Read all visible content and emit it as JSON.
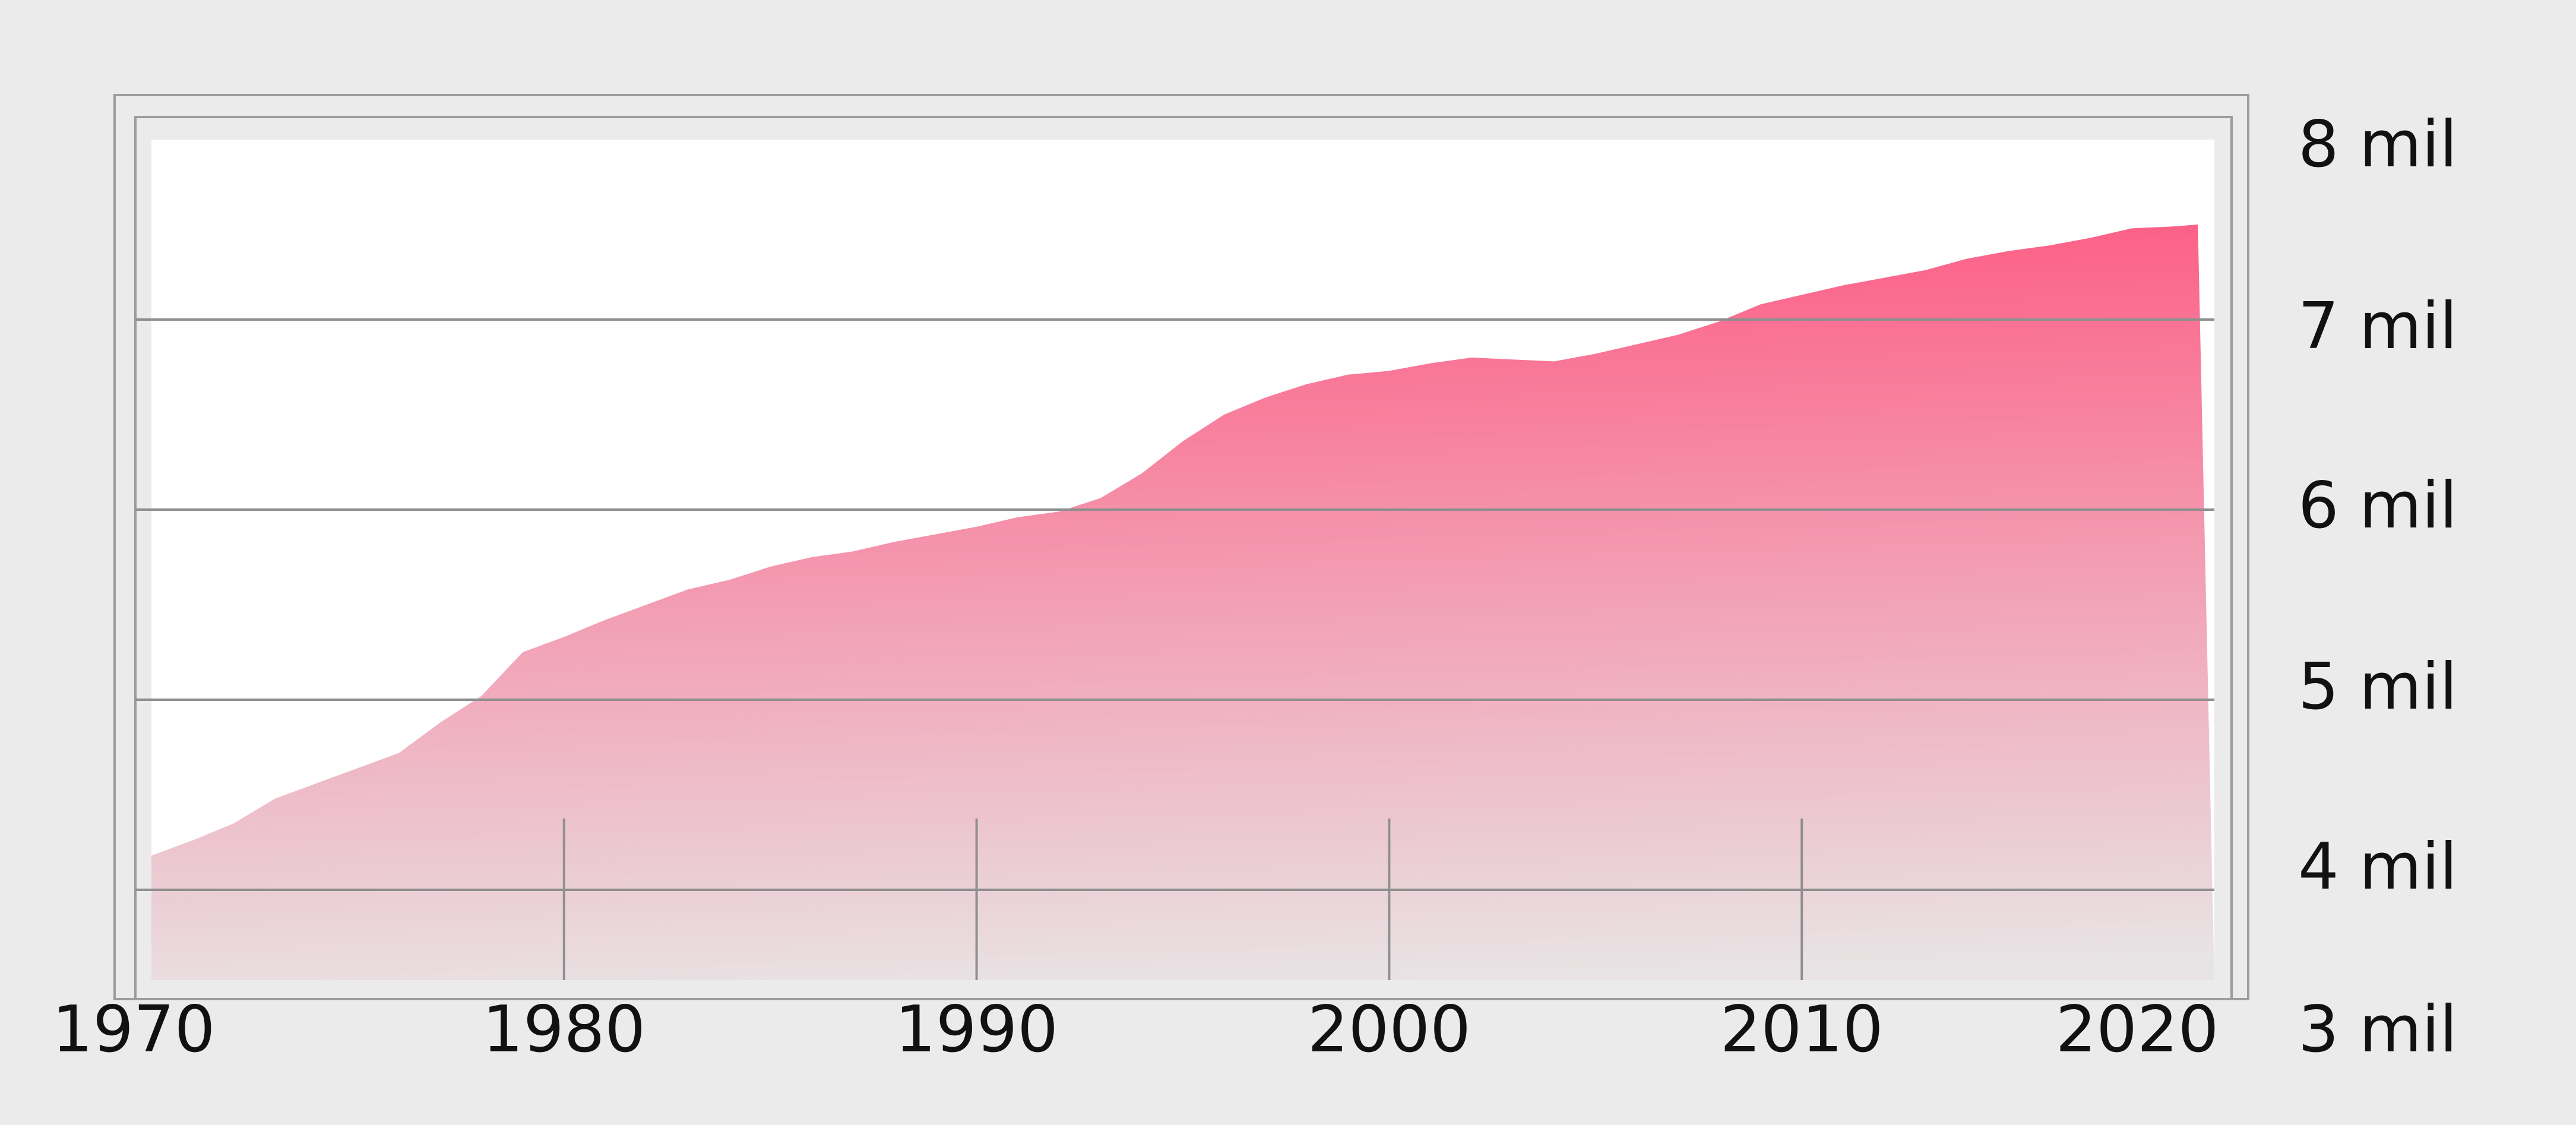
{
  "chart_data": {
    "type": "area",
    "title": "",
    "xlabel": "",
    "ylabel": "",
    "xlim": [
      1970,
      2020
    ],
    "ylim": [
      3,
      8
    ],
    "x_ticks": [
      1970,
      1980,
      1990,
      2000,
      2010,
      2020
    ],
    "x_tick_labels": [
      "1970",
      "1980",
      "1990",
      "2000",
      "2010",
      "2020"
    ],
    "y_ticks": [
      3,
      4,
      5,
      6,
      7,
      8
    ],
    "y_tick_labels": [
      "3 mil",
      "4 mil",
      "5 mil",
      "6 mil",
      "7 mil",
      "8 mil"
    ],
    "y_axis_position": "right",
    "grid": "horizontal",
    "legend": "none",
    "fill_gradient": [
      "#fd5c84",
      "#e8e3e4"
    ],
    "series": [
      {
        "x": [
          1970,
          1971,
          1972,
          1973,
          1974,
          1975,
          1976,
          1977,
          1978,
          1979,
          1980,
          1981,
          1982,
          1983,
          1984,
          1985,
          1986,
          1987,
          1988,
          1989,
          1990,
          1991,
          1992,
          1993,
          1994,
          1995,
          1996,
          1997,
          1998,
          1999,
          2000,
          2001,
          2002,
          2003,
          2004,
          2005,
          2006,
          2007,
          2008,
          2009,
          2010,
          2011,
          2012,
          2013,
          2014,
          2015,
          2016,
          2017,
          2018,
          2019,
          2019.6
        ],
        "values": [
          4.18,
          4.26,
          4.35,
          4.48,
          4.56,
          4.64,
          4.72,
          4.88,
          5.02,
          5.25,
          5.33,
          5.42,
          5.5,
          5.58,
          5.63,
          5.7,
          5.75,
          5.78,
          5.83,
          5.87,
          5.91,
          5.96,
          5.99,
          6.06,
          6.19,
          6.36,
          6.5,
          6.59,
          6.66,
          6.71,
          6.73,
          6.77,
          6.8,
          6.79,
          6.78,
          6.82,
          6.87,
          6.92,
          6.99,
          7.08,
          7.13,
          7.18,
          7.22,
          7.26,
          7.32,
          7.36,
          7.39,
          7.43,
          7.48,
          7.49,
          7.5
        ]
      }
    ]
  }
}
